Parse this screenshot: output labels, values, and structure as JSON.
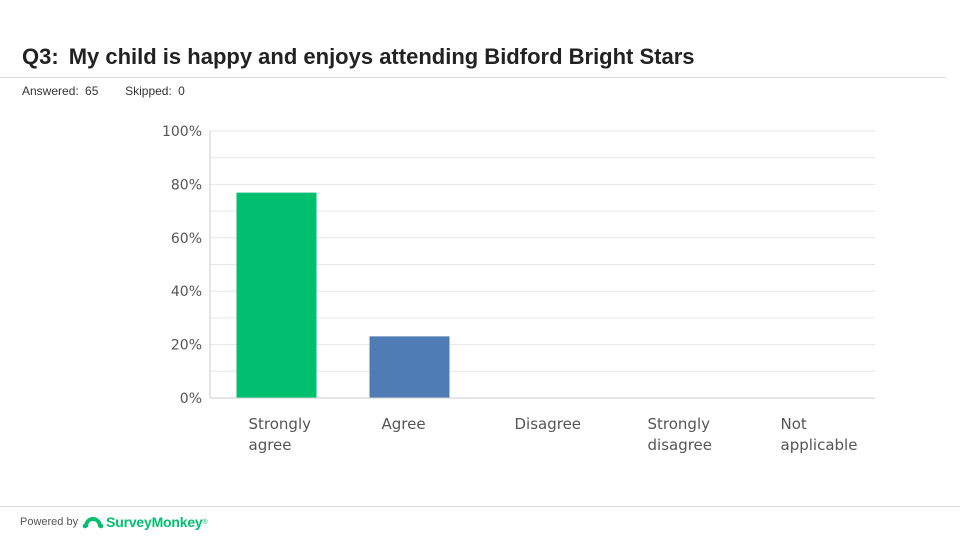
{
  "header": {
    "question_number": "Q3:",
    "question_text": "My child is happy and enjoys attending Bidford Bright Stars"
  },
  "meta": {
    "answered_label": "Answered:",
    "answered_value": "65",
    "skipped_label": "Skipped:",
    "skipped_value": "0"
  },
  "footer": {
    "powered_by": "Powered by",
    "brand": "SurveyMonkey",
    "trademark": "®",
    "logo_icon": "surveymonkey-logo-icon"
  },
  "chart_data": {
    "type": "bar",
    "categories": [
      [
        "Strongly",
        "agree"
      ],
      [
        "Agree"
      ],
      [
        "Disagree"
      ],
      [
        "Strongly",
        "disagree"
      ],
      [
        "Not",
        "applicable"
      ]
    ],
    "values": [
      76.92,
      23.08,
      0,
      0,
      0
    ],
    "value_unit": "%",
    "colors": [
      "#00bf6f",
      "#507cb6",
      "#f05b24",
      "#f9be00",
      "#6bc8cd"
    ],
    "ylim": [
      0,
      100
    ],
    "yticks": [
      "0%",
      "20%",
      "40%",
      "60%",
      "80%",
      "100%"
    ],
    "grid": true,
    "title": "",
    "xlabel": "",
    "ylabel": ""
  }
}
